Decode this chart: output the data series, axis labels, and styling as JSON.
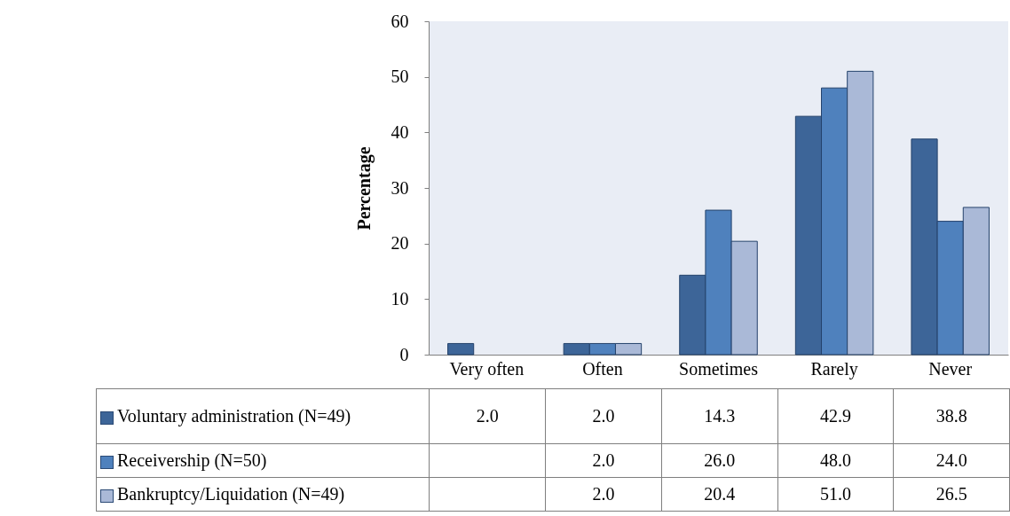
{
  "chart_data": {
    "type": "bar",
    "ylabel": "Percentage",
    "categories": [
      "Very often",
      "Often",
      "Sometimes",
      "Rarely",
      "Never"
    ],
    "series": [
      {
        "name": "Voluntary administration (N=49)",
        "color": "#3d6598",
        "values": [
          2.0,
          2.0,
          14.3,
          42.9,
          38.8
        ],
        "value_labels": [
          "2.0",
          "2.0",
          "14.3",
          "42.9",
          "38.8"
        ]
      },
      {
        "name": "Receivership (N=50)",
        "color": "#4f81bd",
        "values": [
          null,
          2.0,
          26.0,
          48.0,
          24.0
        ],
        "value_labels": [
          null,
          "2.0",
          "26.0",
          "48.0",
          "24.0"
        ]
      },
      {
        "name": "Bankruptcy/Liquidation (N=49)",
        "color": "#aab9d7",
        "values": [
          null,
          2.0,
          20.4,
          51.0,
          26.5
        ],
        "value_labels": [
          null,
          "2.0",
          "20.4",
          "51.0",
          "26.5"
        ]
      }
    ],
    "ylim": [
      0,
      60
    ],
    "yticks": [
      0,
      10,
      20,
      30,
      40,
      50,
      60
    ],
    "grid": false,
    "legend": "bottom"
  }
}
